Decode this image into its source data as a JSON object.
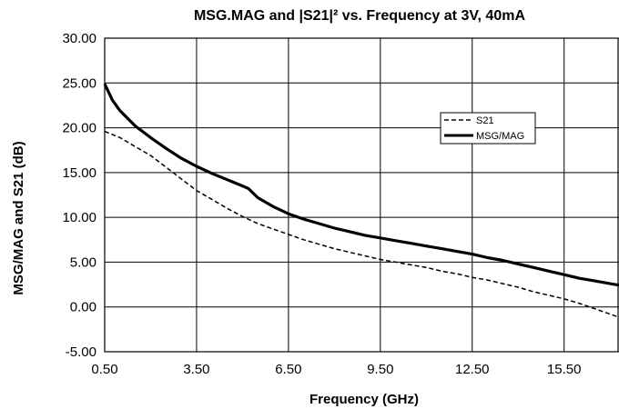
{
  "chart_data": {
    "type": "line",
    "title": "MSG.MAG and |S21|² vs. Frequency at 3V, 40mA",
    "xlabel": "Frequency (GHz)",
    "ylabel": "MSG/MAG and S21 (dB)",
    "xlim": [
      0.5,
      17.5
    ],
    "ylim": [
      -5,
      30
    ],
    "xticks": [
      "0.50",
      "3.50",
      "6.50",
      "9.50",
      "12.50",
      "15.50"
    ],
    "yticks": [
      "-5.00",
      "0.00",
      "5.00",
      "10.00",
      "15.00",
      "20.00",
      "25.00",
      "30.00"
    ],
    "grid": true,
    "legend_position": "right",
    "series": [
      {
        "name": "S21",
        "style": "dashed",
        "color": "#000000",
        "points": [
          [
            0.5,
            19.6
          ],
          [
            1,
            18.9
          ],
          [
            1.5,
            17.9
          ],
          [
            2,
            16.9
          ],
          [
            2.5,
            15.6
          ],
          [
            3,
            14.3
          ],
          [
            3.5,
            13.0
          ],
          [
            4,
            12.0
          ],
          [
            4.5,
            11.0
          ],
          [
            5,
            10.1
          ],
          [
            5.5,
            9.3
          ],
          [
            6,
            8.7
          ],
          [
            6.5,
            8.1
          ],
          [
            7,
            7.5
          ],
          [
            7.5,
            7.0
          ],
          [
            8,
            6.5
          ],
          [
            8.5,
            6.1
          ],
          [
            9,
            5.7
          ],
          [
            9.5,
            5.3
          ],
          [
            10,
            5.0
          ],
          [
            10.5,
            4.7
          ],
          [
            11,
            4.4
          ],
          [
            11.5,
            4.0
          ],
          [
            12,
            3.7
          ],
          [
            12.5,
            3.3
          ],
          [
            13,
            3.0
          ],
          [
            13.5,
            2.6
          ],
          [
            14,
            2.2
          ],
          [
            14.5,
            1.7
          ],
          [
            15,
            1.3
          ],
          [
            15.5,
            0.9
          ],
          [
            16,
            0.4
          ],
          [
            16.5,
            -0.2
          ],
          [
            17,
            -0.8
          ],
          [
            17.5,
            -1.4
          ]
        ]
      },
      {
        "name": "MSG/MAG",
        "style": "solid",
        "color": "#000000",
        "points": [
          [
            0.5,
            24.9
          ],
          [
            0.75,
            23.1
          ],
          [
            1,
            21.9
          ],
          [
            1.5,
            20.2
          ],
          [
            2,
            18.9
          ],
          [
            2.5,
            17.7
          ],
          [
            3,
            16.6
          ],
          [
            3.5,
            15.7
          ],
          [
            4,
            14.9
          ],
          [
            4.5,
            14.2
          ],
          [
            5,
            13.5
          ],
          [
            5.2,
            13.2
          ],
          [
            5.5,
            12.2
          ],
          [
            6,
            11.2
          ],
          [
            6.5,
            10.4
          ],
          [
            7,
            9.8
          ],
          [
            7.5,
            9.3
          ],
          [
            8,
            8.8
          ],
          [
            8.5,
            8.4
          ],
          [
            9,
            8.0
          ],
          [
            9.5,
            7.7
          ],
          [
            10,
            7.4
          ],
          [
            10.5,
            7.1
          ],
          [
            11,
            6.8
          ],
          [
            11.5,
            6.5
          ],
          [
            12,
            6.2
          ],
          [
            12.5,
            5.9
          ],
          [
            13,
            5.5
          ],
          [
            13.5,
            5.2
          ],
          [
            14,
            4.8
          ],
          [
            14.5,
            4.4
          ],
          [
            15,
            4.0
          ],
          [
            15.5,
            3.6
          ],
          [
            16,
            3.2
          ],
          [
            16.5,
            2.9
          ],
          [
            17,
            2.6
          ],
          [
            17.5,
            2.3
          ]
        ]
      }
    ]
  }
}
